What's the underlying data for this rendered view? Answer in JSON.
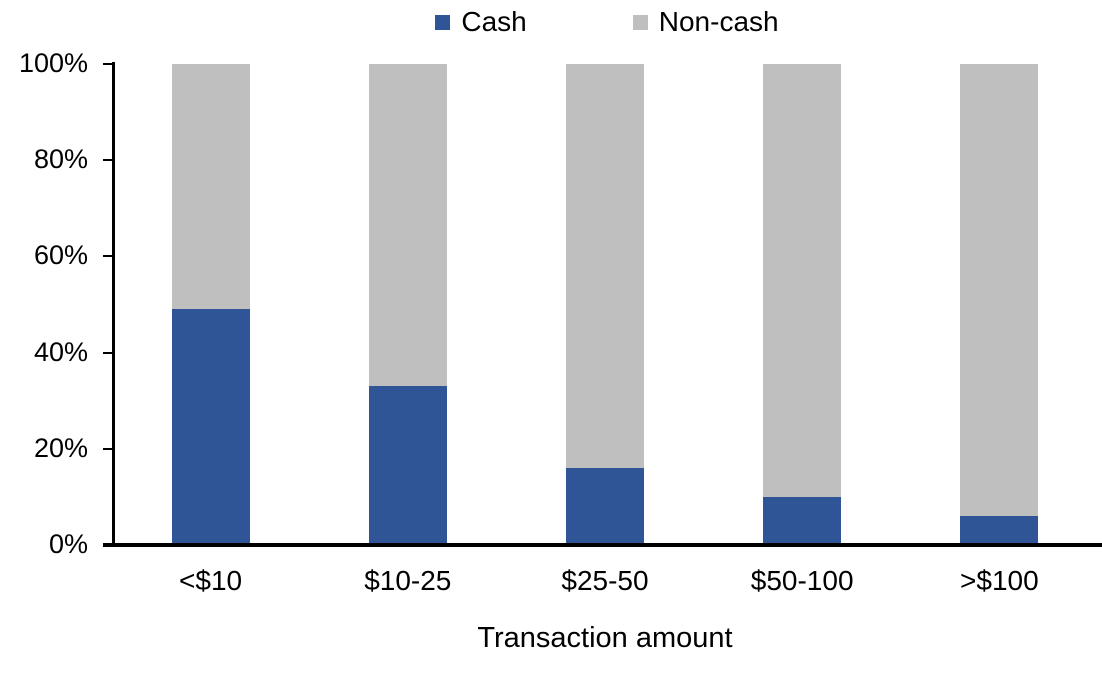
{
  "chart_data": {
    "type": "bar",
    "stacked": "percent",
    "title": "",
    "xlabel": "Transaction amount",
    "ylabel": "",
    "categories": [
      "<$10",
      "$10-25",
      "$25-50",
      "$50-100",
      ">$100"
    ],
    "series": [
      {
        "name": "Cash",
        "color": "#2F5596",
        "values": [
          49,
          33,
          16,
          10,
          6
        ]
      },
      {
        "name": "Non-cash",
        "color": "#BFBFBF",
        "values": [
          51,
          67,
          84,
          90,
          94
        ]
      }
    ],
    "ylim": [
      0,
      100
    ],
    "y_tick_labels": [
      "0%",
      "20%",
      "40%",
      "60%",
      "80%",
      "100%"
    ],
    "grid": false,
    "legend_position": "top",
    "axis_color": "#000000"
  }
}
